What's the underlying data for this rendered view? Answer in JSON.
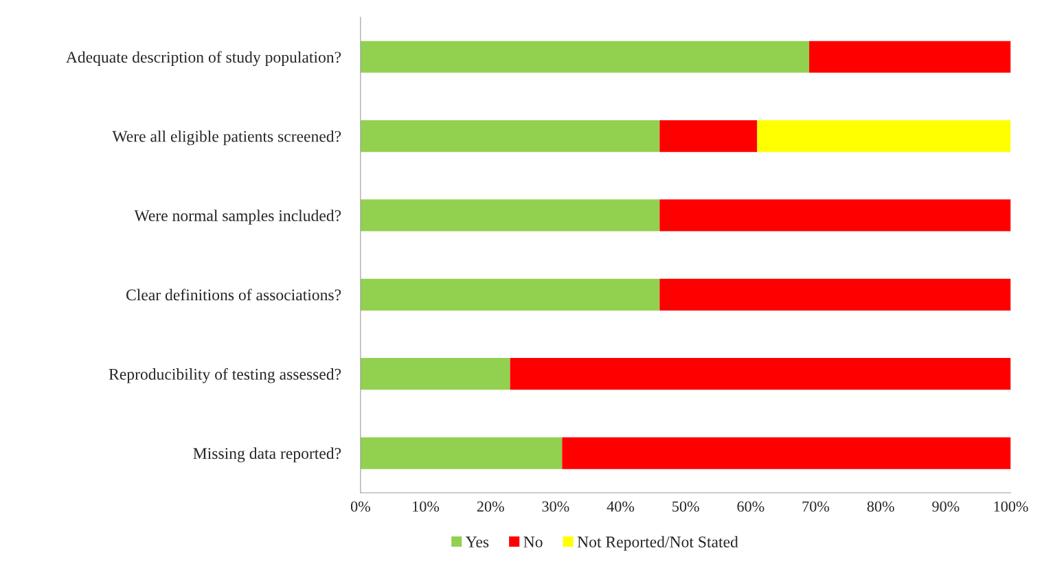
{
  "chart_data": {
    "type": "bar",
    "orientation": "horizontal",
    "stacked": true,
    "categories": [
      "Adequate description of study population?",
      "Were all eligible patients screened?",
      "Were normal samples included?",
      "Clear definitions of associations?",
      "Reproducibility of testing assessed?",
      "Missing data reported?"
    ],
    "series": [
      {
        "name": "Yes",
        "color": "#92d050",
        "values": [
          69,
          46,
          46,
          46,
          23,
          31
        ]
      },
      {
        "name": "No",
        "color": "#ff0000",
        "values": [
          31,
          15,
          54,
          54,
          77,
          69
        ]
      },
      {
        "name": "Not Reported/Not Stated",
        "color": "#ffff00",
        "values": [
          0,
          39,
          0,
          0,
          0,
          0
        ]
      }
    ],
    "xlim": [
      0,
      100
    ],
    "xticks": [
      {
        "value": 0,
        "label": "0%"
      },
      {
        "value": 10,
        "label": "10%"
      },
      {
        "value": 20,
        "label": "20%"
      },
      {
        "value": 30,
        "label": "30%"
      },
      {
        "value": 40,
        "label": "40%"
      },
      {
        "value": 50,
        "label": "50%"
      },
      {
        "value": 60,
        "label": "60%"
      },
      {
        "value": 70,
        "label": "70%"
      },
      {
        "value": 80,
        "label": "80%"
      },
      {
        "value": 90,
        "label": "90%"
      },
      {
        "value": 100,
        "label": "100%"
      }
    ],
    "grid": false,
    "legend": "bottom"
  }
}
